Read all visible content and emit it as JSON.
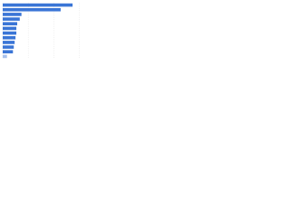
{
  "chart_data": {
    "type": "bar",
    "orientation": "horizontal",
    "categories": [
      null,
      null,
      null,
      null,
      null,
      null,
      null,
      null,
      null,
      null,
      null,
      null
    ],
    "values": [
      82,
      68,
      22,
      20,
      17,
      16,
      16,
      15,
      14,
      13,
      12,
      5
    ],
    "colors": [
      "#3a75d6",
      "#3a75d6",
      "#3a75d6",
      "#3a75d6",
      "#3a75d6",
      "#3a75d6",
      "#3a75d6",
      "#3a75d6",
      "#3a75d6",
      "#3a75d6",
      "#3a75d6",
      "#a9c1ec"
    ],
    "xlim": [
      0,
      100
    ],
    "xticks": [
      0,
      30,
      60,
      90
    ],
    "grid": true
  }
}
